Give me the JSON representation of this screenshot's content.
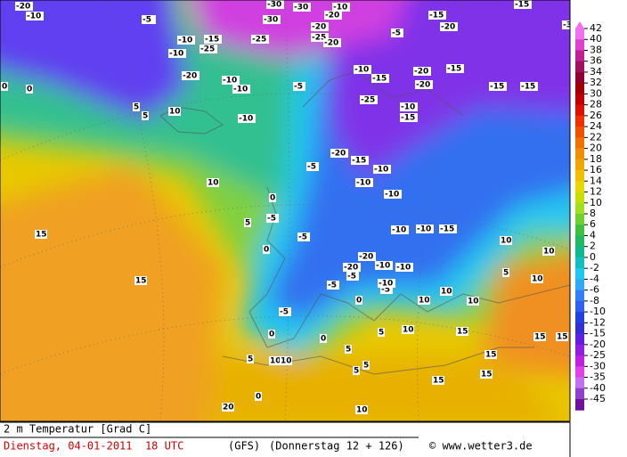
{
  "legend": {
    "ticks": [
      42,
      40,
      38,
      36,
      34,
      32,
      30,
      28,
      26,
      24,
      22,
      20,
      18,
      16,
      14,
      12,
      10,
      8,
      6,
      4,
      2,
      0,
      -2,
      -4,
      -6,
      -8,
      -10,
      -12,
      -15,
      -20,
      -25,
      -30,
      -35,
      -40,
      -45
    ],
    "colors": [
      "#f070f0",
      "#e040d0",
      "#c02090",
      "#a01060",
      "#900030",
      "#a00000",
      "#c00000",
      "#e01000",
      "#f03000",
      "#f05000",
      "#f07000",
      "#f09000",
      "#f0a800",
      "#f0c000",
      "#e8d800",
      "#c8e000",
      "#a0e020",
      "#70d030",
      "#40c040",
      "#20b860",
      "#10b890",
      "#10c0c0",
      "#20c8f0",
      "#30a8f8",
      "#3080f8",
      "#3060f0",
      "#2040e0",
      "#3030d0",
      "#6020e0",
      "#9020e0",
      "#c020e0",
      "#e040e8",
      "#c070f0",
      "#9040d0",
      "#7010a0"
    ]
  },
  "map": {
    "labels": [
      "-20",
      "-10",
      "-5",
      "-30",
      "-30",
      "-30",
      "-10",
      "-15",
      "-20",
      "-30",
      "-15",
      "-10",
      "-15",
      "-10",
      "-25",
      "-20",
      "-10",
      "-10",
      "-25",
      "-20",
      "-20",
      "-5",
      "-5",
      "-25",
      "-20",
      "-10",
      "-15",
      "0",
      "0",
      "5",
      "5",
      "10",
      "-20",
      "-15",
      "-20",
      "-15",
      "-15",
      "-25",
      "-15",
      "-10",
      "-5",
      "-10",
      "-20",
      "-15",
      "-10",
      "-5",
      "-10",
      "-10",
      "-5",
      "-5",
      "0",
      "0",
      "5",
      "-10",
      "-10",
      "-15",
      "-10",
      "-20",
      "-20",
      "-5",
      "-5",
      "-5",
      "0",
      "0",
      "5",
      "10",
      "5",
      "0",
      "-5",
      "5",
      "10",
      "15",
      "15",
      "15",
      "10",
      "10",
      "5",
      "10",
      "10",
      "10",
      "15",
      "20",
      "15",
      "15",
      "10",
      "10",
      "5",
      "15",
      "15",
      "10",
      "-10",
      "-10",
      "5",
      "10",
      "0"
    ]
  },
  "footer": {
    "variable": "2 m Temperatur [Grad C]",
    "date": "Dienstag, 04-01-2011  18 UTC",
    "model": "(GFS)",
    "forecast": "(Donnerstag 12 + 126)",
    "source": "© www.wetter3.de"
  }
}
